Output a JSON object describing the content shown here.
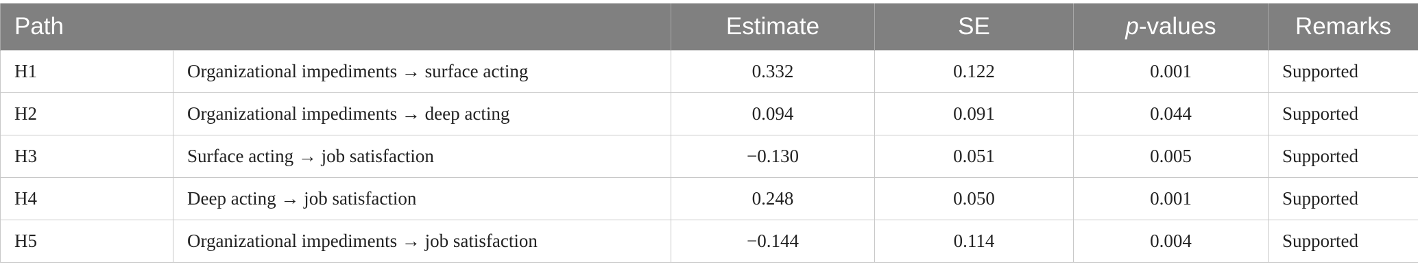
{
  "table": {
    "headers": {
      "path": "Path",
      "estimate": "Estimate",
      "se": "SE",
      "p_italic": "p",
      "p_rest": "-values",
      "remarks": "Remarks"
    },
    "rows": [
      {
        "id": "H1",
        "path": "Organizational impediments → surface acting",
        "estimate": "0.332",
        "se": "0.122",
        "p": "0.001",
        "remarks": "Supported"
      },
      {
        "id": "H2",
        "path": "Organizational impediments → deep acting",
        "estimate": "0.094",
        "se": "0.091",
        "p": "0.044",
        "remarks": "Supported"
      },
      {
        "id": "H3",
        "path": "Surface acting → job satisfaction",
        "estimate": "−0.130",
        "se": "0.051",
        "p": "0.005",
        "remarks": "Supported"
      },
      {
        "id": "H4",
        "path": "Deep acting → job satisfaction",
        "estimate": "0.248",
        "se": "0.050",
        "p": "0.001",
        "remarks": "Supported"
      },
      {
        "id": "H5",
        "path": "Organizational impediments → job satisfaction",
        "estimate": "−0.144",
        "se": "0.114",
        "p": "0.004",
        "remarks": "Supported"
      }
    ]
  }
}
